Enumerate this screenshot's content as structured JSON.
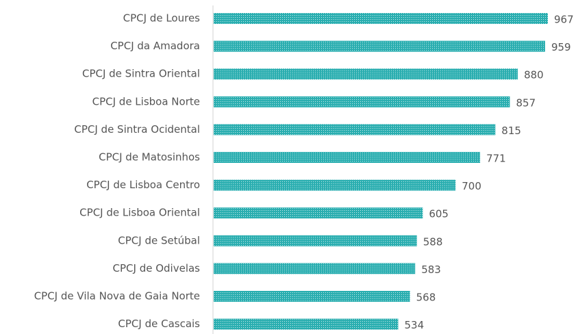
{
  "chart_data": {
    "type": "bar",
    "orientation": "horizontal",
    "categories": [
      "CPCJ de Loures",
      "CPCJ da Amadora",
      "CPCJ de Sintra Oriental",
      "CPCJ de Lisboa Norte",
      "CPCJ de Sintra Ocidental",
      "CPCJ de Matosinhos",
      "CPCJ de Lisboa Centro",
      "CPCJ de Lisboa Oriental",
      "CPCJ de Setúbal",
      "CPCJ de Odivelas",
      "CPCJ de Vila Nova de Gaia Norte",
      "CPCJ de Cascais"
    ],
    "values": [
      967,
      959,
      880,
      857,
      815,
      771,
      700,
      605,
      588,
      583,
      568,
      534
    ],
    "color": "#2aaeb0"
  }
}
